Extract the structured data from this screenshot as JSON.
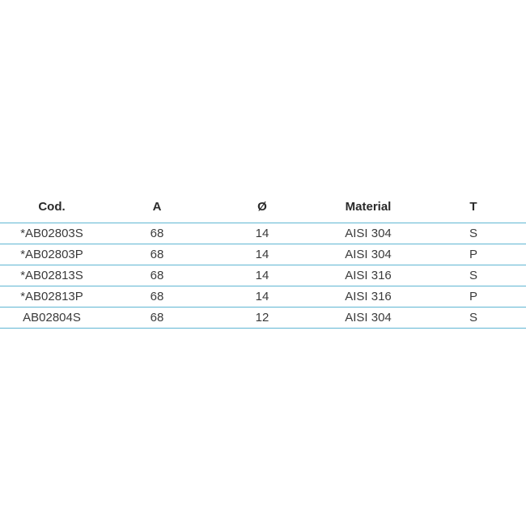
{
  "table": {
    "headers": {
      "code": "Cod.",
      "a": "A",
      "diameter": "Ø",
      "material": "Material",
      "t": "T"
    },
    "rows": [
      {
        "code": "*AB02803S",
        "a": "68",
        "diameter": "14",
        "material": "AISI 304",
        "t": "S"
      },
      {
        "code": "*AB02803P",
        "a": "68",
        "diameter": "14",
        "material": "AISI 304",
        "t": "P"
      },
      {
        "code": "*AB02813S",
        "a": "68",
        "diameter": "14",
        "material": "AISI 316",
        "t": "S"
      },
      {
        "code": "*AB02813P",
        "a": "68",
        "diameter": "14",
        "material": "AISI 316",
        "t": "P"
      },
      {
        "code": "AB02804S",
        "a": "68",
        "diameter": "12",
        "material": "AISI 304",
        "t": "S"
      }
    ],
    "line_color": "#5fb6d3"
  }
}
